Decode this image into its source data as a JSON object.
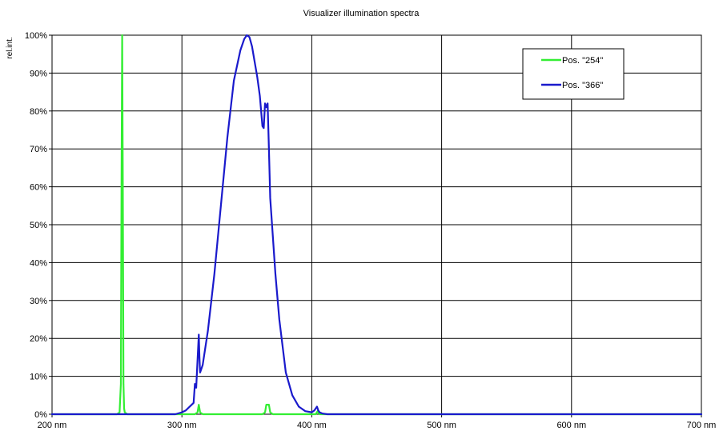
{
  "chart_data": {
    "type": "line",
    "title": "Visualizer illumination spectra",
    "ylabel": "rel.int.",
    "xlabel": "",
    "xlim": [
      200,
      700
    ],
    "ylim": [
      0,
      100
    ],
    "x_ticks": [
      200,
      300,
      400,
      500,
      600,
      700
    ],
    "x_tick_labels": [
      "200 nm",
      "300 nm",
      "400 nm",
      "500 nm",
      "600 nm",
      "700 nm"
    ],
    "y_ticks": [
      0,
      10,
      20,
      30,
      40,
      50,
      60,
      70,
      80,
      90,
      100
    ],
    "y_tick_labels": [
      "0%",
      "10%",
      "20%",
      "30%",
      "40%",
      "50%",
      "60%",
      "70%",
      "80%",
      "90%",
      "100%"
    ],
    "grid": true,
    "legend_position": "top-right",
    "series": [
      {
        "name": "Pos. \"254\"",
        "color": "#33ee33",
        "x": [
          200,
          250,
          252,
          253,
          253.5,
          254,
          254.5,
          255,
          255.5,
          256,
          258,
          310,
          312,
          313,
          314,
          316,
          362,
          364,
          365,
          366,
          367,
          368,
          370,
          403,
          404.5,
          405,
          406,
          700
        ],
        "y": [
          0,
          0,
          0.5,
          8,
          60,
          100,
          60,
          8,
          1.5,
          0.5,
          0,
          0,
          0.5,
          2.5,
          0.5,
          0,
          0,
          0.5,
          2.5,
          2.5,
          2.5,
          0.5,
          0,
          0,
          0.8,
          0.5,
          0,
          0
        ]
      },
      {
        "name": "Pos. \"366\"",
        "color": "#1a1acc",
        "x": [
          200,
          295,
          300,
          303,
          306,
          309,
          310,
          311,
          312,
          313,
          313.5,
          314,
          316,
          320,
          325,
          330,
          335,
          340,
          345,
          348,
          350,
          352,
          354,
          356,
          358,
          360,
          362,
          363,
          364,
          365,
          366,
          367,
          368,
          370,
          372,
          375,
          380,
          385,
          390,
          395,
          400,
          402,
          403,
          404,
          405,
          406,
          408,
          412,
          700
        ],
        "y": [
          0,
          0,
          0.5,
          1,
          2,
          3,
          8,
          7,
          14,
          21,
          15,
          11,
          13,
          22,
          37,
          55,
          73,
          88,
          96,
          99,
          100,
          99.5,
          97,
          93,
          89,
          84,
          76,
          75.5,
          82,
          81,
          82,
          70,
          57,
          47,
          37,
          25,
          11,
          5,
          2,
          0.8,
          0.5,
          1,
          1.5,
          2,
          1,
          0.5,
          0.2,
          0,
          0
        ]
      }
    ]
  }
}
